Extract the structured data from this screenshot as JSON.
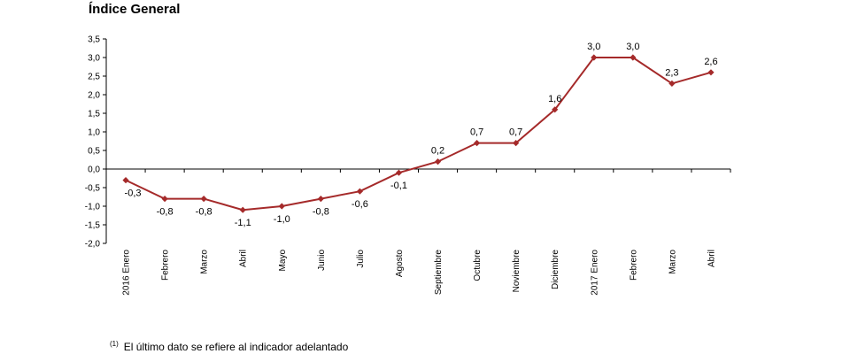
{
  "chart_data": {
    "type": "line",
    "title": "Índice General",
    "xlabel": "",
    "ylabel": "",
    "ylim": [
      -2.0,
      3.5
    ],
    "yticks": [
      "3,5",
      "3,0",
      "2,5",
      "2,0",
      "1,5",
      "1,0",
      "0,5",
      "0,0",
      "-0,5",
      "-1,0",
      "-1,5",
      "-2,0"
    ],
    "grid": false,
    "legend": "none",
    "categories": [
      "2016 Enero",
      "Febrero",
      "Marzo",
      "Abril",
      "Mayo",
      "Junio",
      "Julio",
      "Agosto",
      "Septiembre",
      "Octubre",
      "Noviembre",
      "Diciembre",
      "2017 Enero",
      "Febrero",
      "Marzo",
      "Abril"
    ],
    "series": [
      {
        "values": [
          -0.3,
          -0.8,
          -0.8,
          -1.1,
          -1.0,
          -0.8,
          -0.6,
          -0.1,
          0.2,
          0.7,
          0.7,
          1.6,
          3.0,
          3.0,
          2.3,
          2.6
        ],
        "labels": [
          "-0,3",
          "-0,8",
          "-0,8",
          "-1,1",
          "-1,0",
          "-0,8",
          "-0,6",
          "-0,1",
          "0,2",
          "0,7",
          "0,7",
          "1,6",
          "3,0",
          "3,0",
          "2,3",
          "2,6"
        ],
        "color": "#a52a2a"
      }
    ]
  },
  "footnote": {
    "marker": "(1)",
    "text": "El último dato se refiere al indicador adelantado"
  }
}
